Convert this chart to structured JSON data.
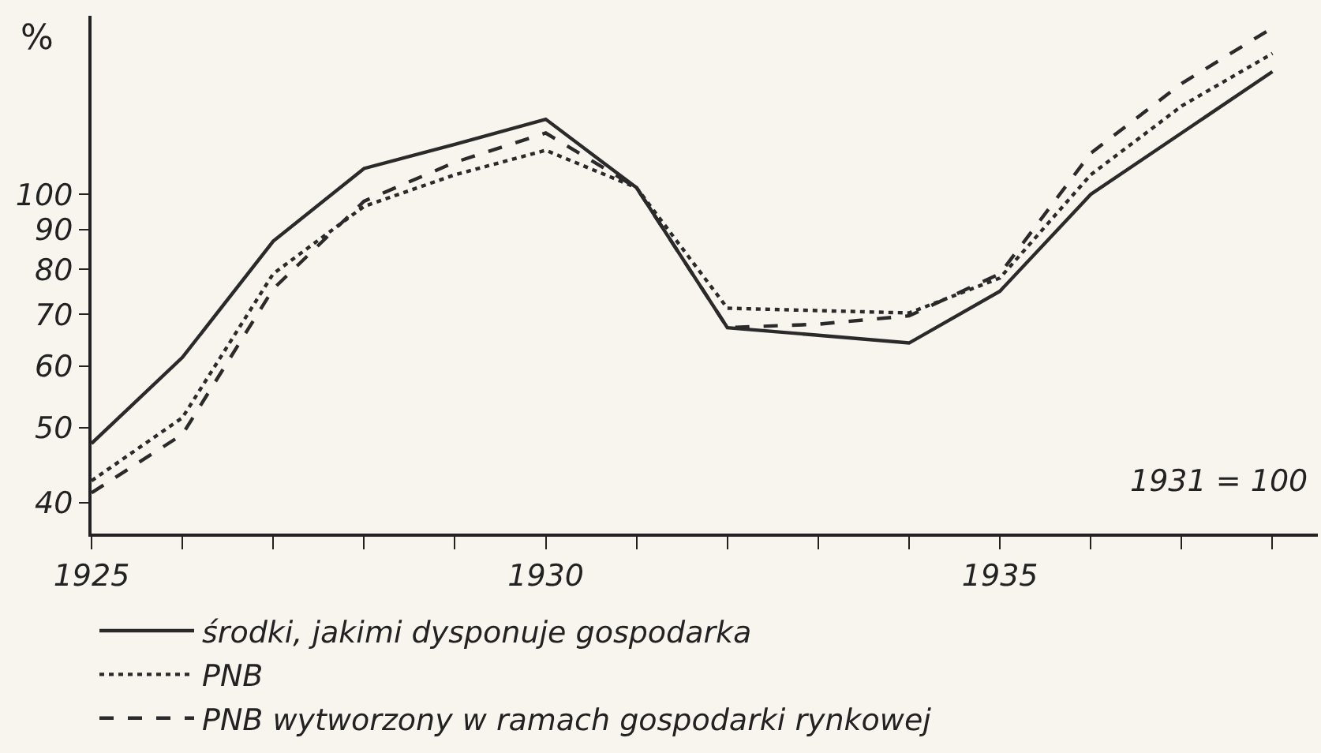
{
  "chart_data": {
    "type": "line",
    "ylabel": "%",
    "x": [
      1925,
      1926,
      1927,
      1928,
      1929,
      1930,
      1931,
      1932,
      1933,
      1934,
      1935,
      1936,
      1937,
      1938
    ],
    "series": [
      {
        "name": "środki, jakimi dysponuje gospodarka",
        "color": "#2a2a2a",
        "line_style": "solid",
        "values": [
          47.7,
          61.6,
          87,
          108,
          116,
          125,
          102,
          67.3,
          65.8,
          64.3,
          75,
          100,
          120,
          144
        ]
      },
      {
        "name": "PNB",
        "color": "#2a2a2a",
        "line_style": "dotted",
        "values": [
          42.7,
          51.5,
          79,
          96.5,
          106,
          114,
          102,
          71.3,
          70.8,
          70.3,
          78,
          106,
          130,
          152
        ]
      },
      {
        "name": "PNB wytworzony w ramach gospodarki rynkowej",
        "color": "#2a2a2a",
        "line_style": "dashed",
        "values": [
          41.2,
          49,
          75.5,
          98,
          110,
          120,
          102,
          67.3,
          68,
          69.7,
          79,
          113,
          139,
          164
        ]
      }
    ],
    "log": "y",
    "ylim": [
      36.5,
      170
    ],
    "yticks": [
      40,
      50,
      60,
      70,
      80,
      90,
      100
    ],
    "xlim": [
      1925,
      1938.5
    ],
    "xticks": [
      1925,
      {
        "value": 1926,
        "label": null
      },
      {
        "value": 1927,
        "label": null
      },
      {
        "value": 1928,
        "label": null
      },
      {
        "value": 1929,
        "label": null
      },
      1930,
      {
        "value": 1931,
        "label": null
      },
      {
        "value": 1932,
        "label": null
      },
      {
        "value": 1933,
        "label": null
      },
      {
        "value": 1934,
        "label": null
      },
      1935,
      {
        "value": 1936,
        "label": null
      },
      {
        "value": 1937,
        "label": null
      },
      {
        "value": 1938,
        "label": null
      }
    ],
    "annotations": [
      "1931 = 100"
    ],
    "grid": false,
    "legend": "bottom",
    "marker": "none"
  }
}
